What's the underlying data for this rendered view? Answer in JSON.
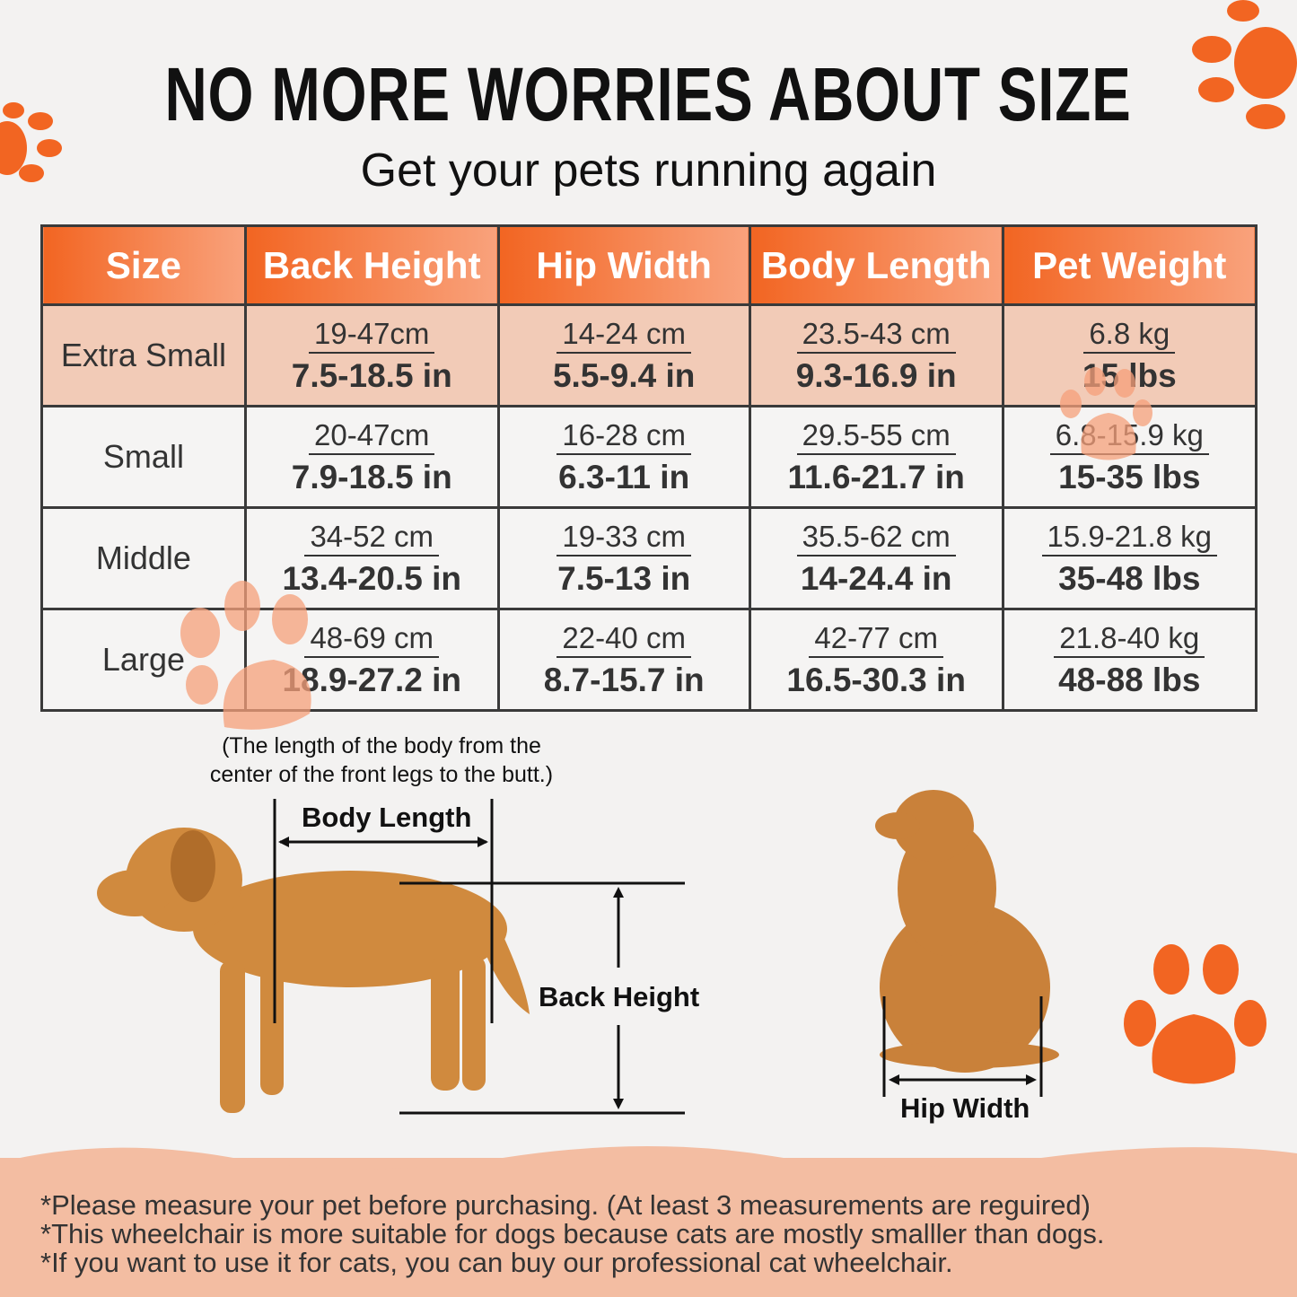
{
  "title": "NO MORE WORRIES ABOUT SIZE",
  "subtitle": "Get your pets running again",
  "colors": {
    "accent": "#f26522",
    "header_light": "#f9a27c",
    "row_highlight": "#f2cbb7",
    "footer": "#f3bda2"
  },
  "table": {
    "headers": [
      "Size",
      "Back Height",
      "Hip Width",
      "Body Length",
      "Pet Weight"
    ],
    "rows": [
      {
        "size": "Extra Small",
        "cells": [
          [
            "19-47cm",
            "7.5-18.5 in"
          ],
          [
            "14-24 cm",
            "5.5-9.4 in"
          ],
          [
            "23.5-43 cm",
            "9.3-16.9 in"
          ],
          [
            "6.8 kg",
            "15 lbs"
          ]
        ]
      },
      {
        "size": "Small",
        "cells": [
          [
            "20-47cm",
            "7.9-18.5 in"
          ],
          [
            "16-28 cm",
            "6.3-11 in"
          ],
          [
            "29.5-55 cm",
            "11.6-21.7 in"
          ],
          [
            "6.8-15.9 kg",
            "15-35 lbs"
          ]
        ]
      },
      {
        "size": "Middle",
        "cells": [
          [
            "34-52 cm",
            "13.4-20.5 in"
          ],
          [
            "19-33 cm",
            "7.5-13 in"
          ],
          [
            "35.5-62 cm",
            "14-24.4 in"
          ],
          [
            "15.9-21.8 kg",
            "35-48 lbs"
          ]
        ]
      },
      {
        "size": "Large",
        "cells": [
          [
            "48-69 cm",
            "18.9-27.2 in"
          ],
          [
            "22-40 cm",
            "8.7-15.7 in"
          ],
          [
            "42-77 cm",
            "16.5-30.3 in"
          ],
          [
            "21.8-40 kg",
            "48-88 lbs"
          ]
        ]
      }
    ]
  },
  "diagram": {
    "note_line1": "(The length of the body from the",
    "note_line2": "center of the front legs to the butt.)",
    "body_length": "Body Length",
    "back_height": "Back Height",
    "hip_width": "Hip Width"
  },
  "footer": {
    "lines": [
      "*Please measure your pet before purchasing. (At least 3 measurements are reguired)",
      "*This wheelchair is more suitable for dogs because cats are mostly smalller than dogs.",
      "*If you want to use it for cats, you can buy our professional cat wheelchair."
    ]
  }
}
